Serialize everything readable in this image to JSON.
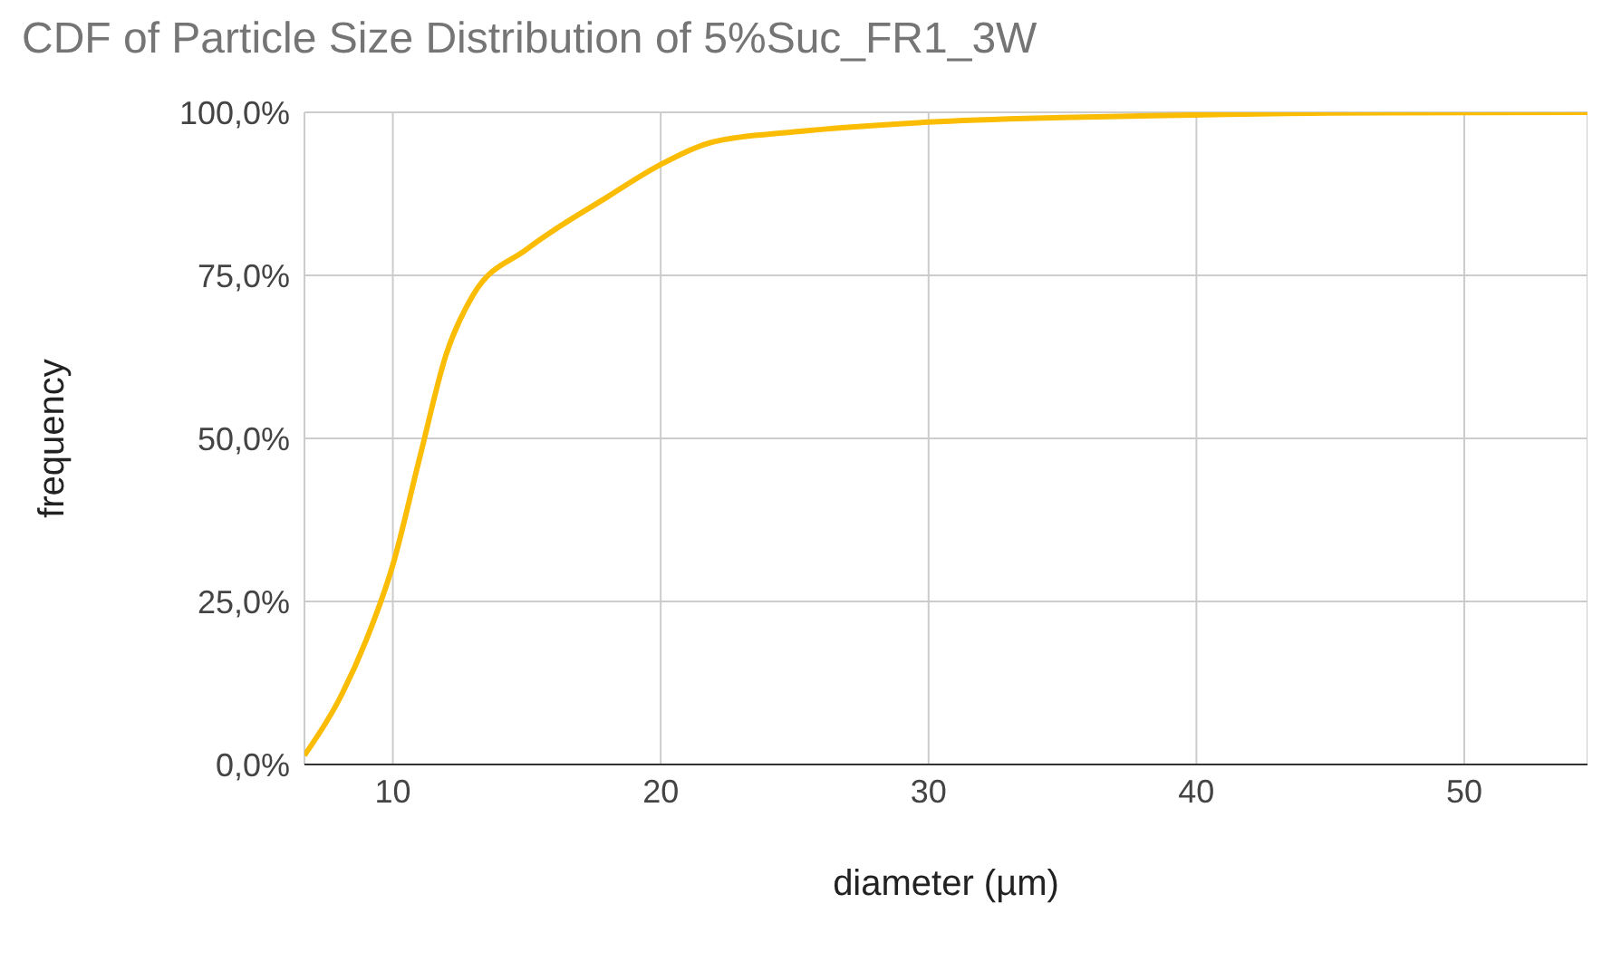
{
  "chart_data": {
    "type": "line",
    "title": "CDF of Particle Size Distribution of 5%Suc_FR1_3W",
    "xlabel": "diameter (µm)",
    "ylabel": "frequency",
    "x": [
      6.7,
      8,
      9,
      10,
      11,
      12,
      13,
      15,
      18,
      20,
      22,
      25,
      30,
      35,
      40,
      45,
      54.6
    ],
    "series": [
      {
        "color": "#fbbc04",
        "values": [
          1.4,
          10,
          19,
          30.6,
          47,
          63,
          72,
          79,
          87,
          92,
          95.5,
          97,
          98.5,
          99.2,
          99.6,
          99.9,
          100
        ]
      }
    ],
    "xlim": [
      6.7,
      54.6
    ],
    "xticks": [
      10,
      20,
      30,
      40,
      50
    ],
    "ylim": [
      0,
      100
    ],
    "yticks": [
      {
        "value": 0,
        "label": "0,0%"
      },
      {
        "value": 25,
        "label": "25,0%"
      },
      {
        "value": 50,
        "label": "50,0%"
      },
      {
        "value": 75,
        "label": "75,0%"
      },
      {
        "value": 100,
        "label": "100,0%"
      }
    ],
    "grid": true,
    "marker": "none",
    "line_style": "solid"
  }
}
